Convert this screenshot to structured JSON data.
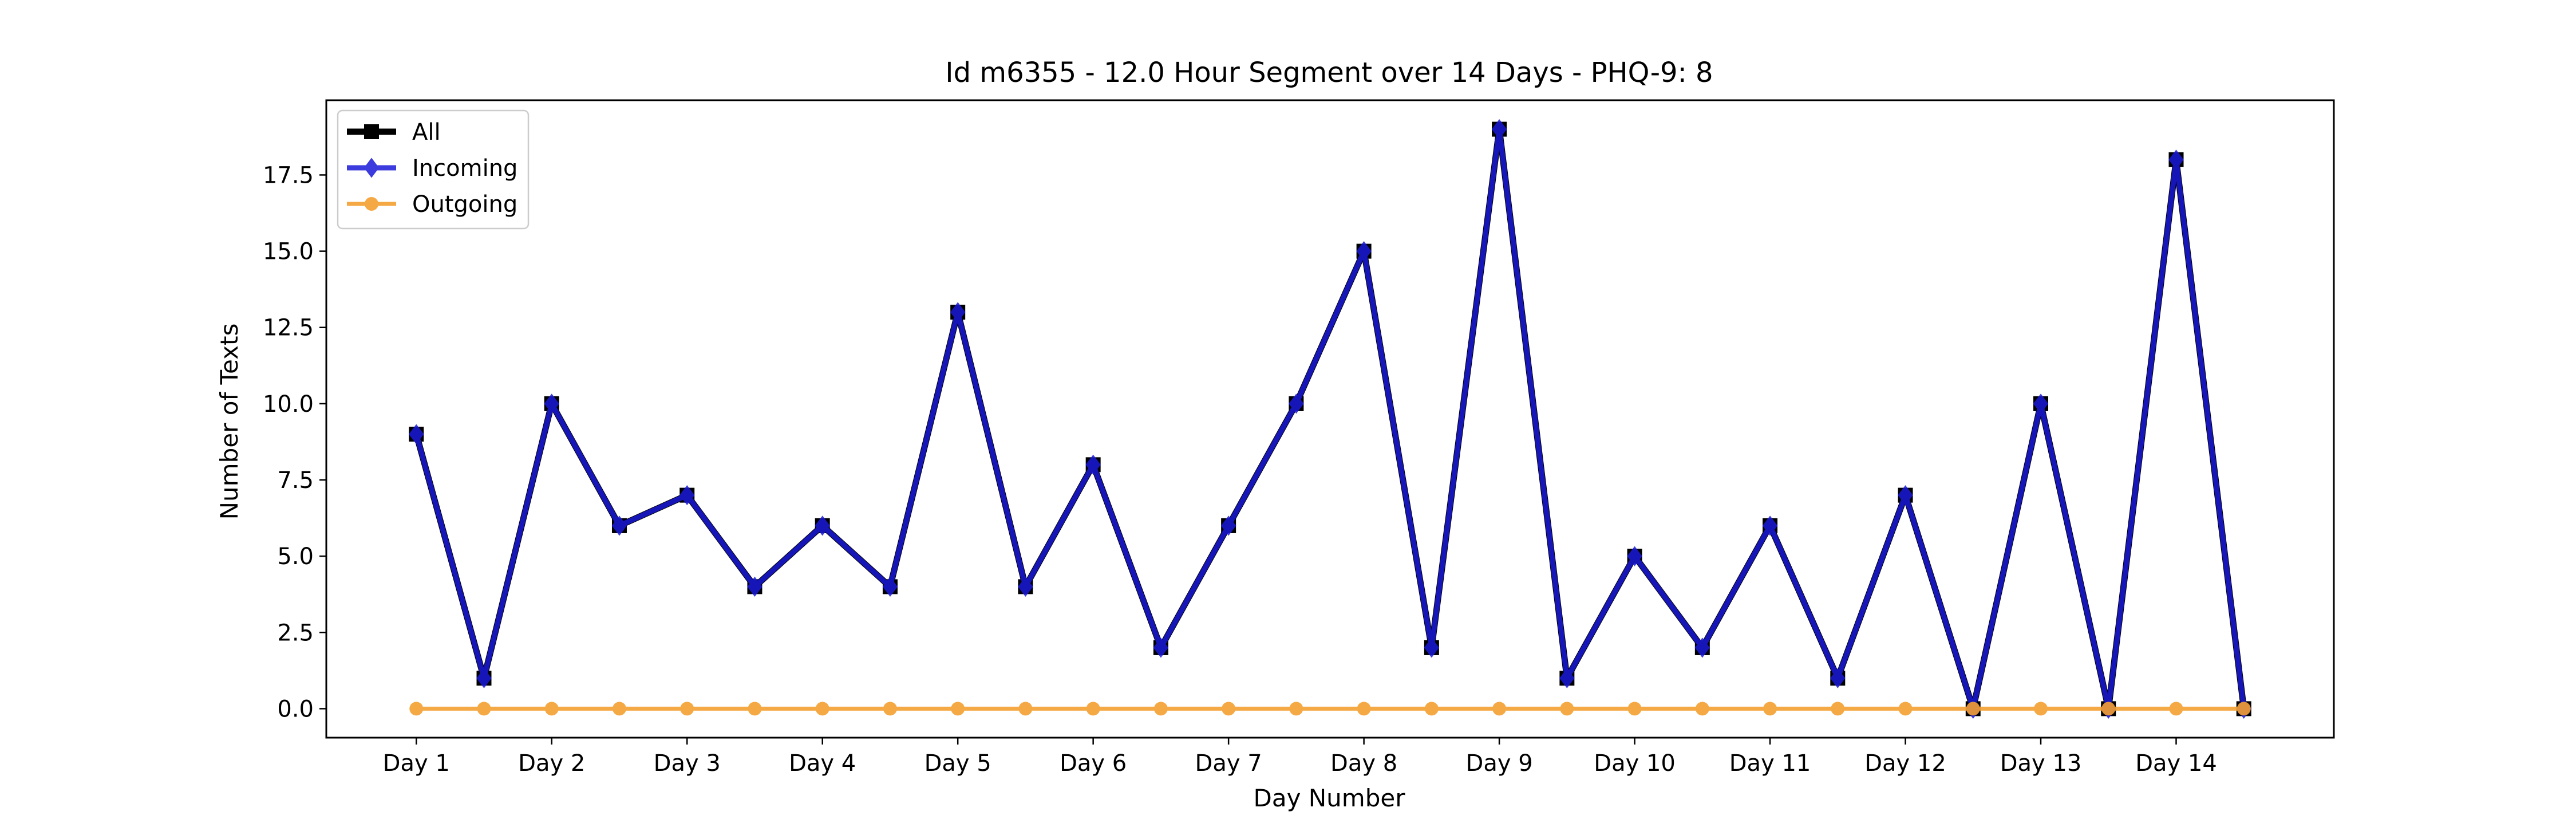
{
  "chart_data": {
    "type": "line",
    "title": "Id m6355 - 12.0 Hour Segment over 14 Days - PHQ-9: 8",
    "xlabel": "Day Number",
    "ylabel": "Number of Texts",
    "x": [
      1,
      1.5,
      2,
      2.5,
      3,
      3.5,
      4,
      4.5,
      5,
      5.5,
      6,
      6.5,
      7,
      7.5,
      8,
      8.5,
      9,
      9.5,
      10,
      10.5,
      11,
      11.5,
      12,
      12.5,
      13,
      13.5,
      14,
      14.5
    ],
    "xticks": [
      1,
      2,
      3,
      4,
      5,
      6,
      7,
      8,
      9,
      10,
      11,
      12,
      13,
      14
    ],
    "xtick_labels": [
      "Day 1",
      "Day 2",
      "Day 3",
      "Day 4",
      "Day 5",
      "Day 6",
      "Day 7",
      "Day 8",
      "Day 9",
      "Day 10",
      "Day 11",
      "Day 12",
      "Day 13",
      "Day 14"
    ],
    "xlim": [
      0.335,
      15.165
    ],
    "yticks": [
      0,
      2.5,
      5,
      7.5,
      10,
      12.5,
      15,
      17.5
    ],
    "ytick_labels": [
      "0.0",
      "2.5",
      "5.0",
      "7.5",
      "10.0",
      "12.5",
      "15.0",
      "17.5"
    ],
    "ylim": [
      -0.95,
      19.95
    ],
    "grid": false,
    "legend_position": "top-left",
    "series": [
      {
        "name": "All",
        "color": "#000000",
        "marker": "square",
        "values": [
          9,
          1,
          10,
          6,
          7,
          4,
          6,
          4,
          13,
          4,
          8,
          2,
          6,
          10,
          15,
          2,
          19,
          1,
          5,
          2,
          6,
          1,
          7,
          0,
          10,
          0,
          18,
          0
        ]
      },
      {
        "name": "Incoming",
        "color": "#1a1ad9",
        "marker": "diamond",
        "values": [
          9,
          1,
          10,
          6,
          7,
          4,
          6,
          4,
          13,
          4,
          8,
          2,
          6,
          10,
          15,
          2,
          19,
          1,
          5,
          2,
          6,
          1,
          7,
          0,
          10,
          0,
          18,
          0
        ]
      },
      {
        "name": "Outgoing",
        "color": "#f5a030",
        "marker": "circle",
        "values": [
          0,
          0,
          0,
          0,
          0,
          0,
          0,
          0,
          0,
          0,
          0,
          0,
          0,
          0,
          0,
          0,
          0,
          0,
          0,
          0,
          0,
          0,
          0,
          0,
          0,
          0,
          0,
          0
        ]
      }
    ]
  }
}
